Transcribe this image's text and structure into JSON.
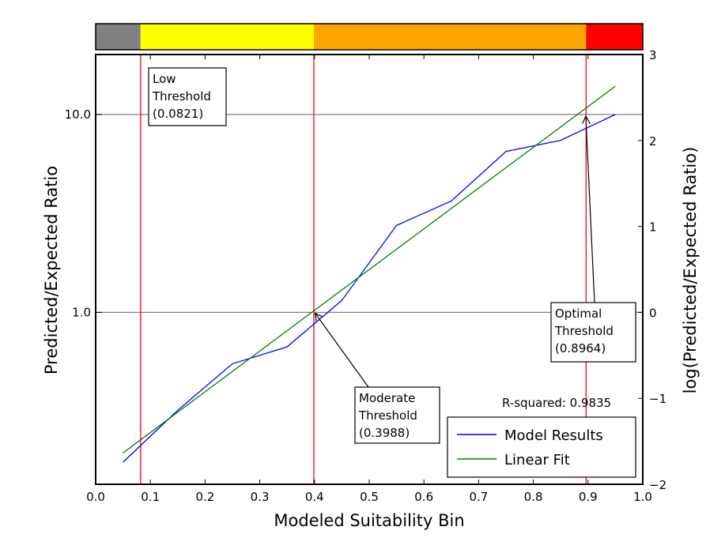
{
  "chart_data": {
    "type": "line",
    "xlabel": "Modeled Suitability Bin",
    "ylabel": "Predicted/Expected Ratio",
    "ylabel_right": "log(Predicted/Expected Ratio)",
    "xlim": [
      0.0,
      1.0
    ],
    "ylim_log": [
      -2,
      3
    ],
    "yscale": "log",
    "x_ticks": [
      "0.0",
      "0.1",
      "0.2",
      "0.3",
      "0.4",
      "0.5",
      "0.6",
      "0.7",
      "0.8",
      "0.9",
      "1.0"
    ],
    "y_ticks_left": [
      {
        "value": 1.0,
        "label": "1.0"
      },
      {
        "value": 10.0,
        "label": "10.0"
      }
    ],
    "y_ticks_right": [
      {
        "value": -2,
        "label": "−2"
      },
      {
        "value": -1,
        "label": "−1"
      },
      {
        "value": 0,
        "label": "0"
      },
      {
        "value": 1,
        "label": "1"
      },
      {
        "value": 2,
        "label": "2"
      },
      {
        "value": 3,
        "label": "3"
      }
    ],
    "gridlines_y": [
      1.0,
      10.0
    ],
    "series": [
      {
        "name": "Model Results",
        "color": "#0000ff",
        "x": [
          0.05,
          0.15,
          0.25,
          0.35,
          0.45,
          0.55,
          0.65,
          0.75,
          0.85,
          0.95
        ],
        "y": [
          0.175,
          0.32,
          0.55,
          0.67,
          1.15,
          2.75,
          3.65,
          6.5,
          7.4,
          10.0
        ]
      },
      {
        "name": "Linear Fit",
        "color": "#008000",
        "x": [
          0.05,
          0.95
        ],
        "y": [
          0.195,
          13.9
        ]
      }
    ],
    "thresholds": [
      {
        "x": 0.0821,
        "label_lines": [
          "Low",
          "Threshold",
          "(0.0821)"
        ]
      },
      {
        "x": 0.3988,
        "label_lines": [
          "Moderate",
          "Threshold",
          "(0.3988)"
        ]
      },
      {
        "x": 0.8964,
        "label_lines": [
          "Optimal",
          "Threshold",
          "(0.8964)"
        ]
      }
    ],
    "threshold_color": "#ff0000",
    "color_bar": [
      {
        "from": 0.0,
        "to": 0.0821,
        "color": "#808080"
      },
      {
        "from": 0.0821,
        "to": 0.3988,
        "color": "#ffff00"
      },
      {
        "from": 0.3988,
        "to": 0.8964,
        "color": "#ffa500"
      },
      {
        "from": 0.8964,
        "to": 1.0,
        "color": "#ff0000"
      }
    ],
    "r_squared_text": "R-squared: 0.9835",
    "legend_position": "lower-right",
    "grid": "horizontal at 1.0 and 10.0"
  }
}
